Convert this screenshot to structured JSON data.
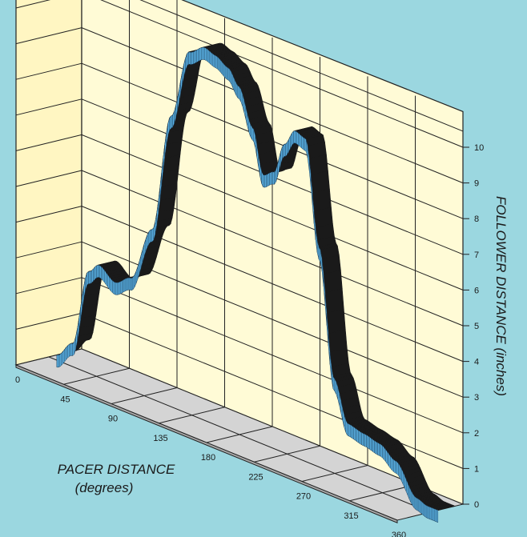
{
  "chart_data": {
    "type": "area",
    "render": "3d-ribbon",
    "xlabel": "PACER DISTANCE",
    "xlabel_unit": "(degrees)",
    "ylabel": "FOLLOWER DISTANCE  (inches)",
    "xlim": [
      0,
      360
    ],
    "ylim": [
      0,
      10
    ],
    "x_ticks": [
      "0",
      "45",
      "90",
      "135",
      "180",
      "225",
      "270",
      "315",
      "360"
    ],
    "y_ticks": [
      "0",
      "1",
      "2",
      "3",
      "4",
      "5",
      "6",
      "7",
      "8",
      "9",
      "10"
    ],
    "grid": true,
    "colors": {
      "background": "#9bd7e0",
      "back_wall": "#fffbd6",
      "side_wall": "#fff6c2",
      "floor": "#d4d4d4",
      "ribbon_front": "#5bb3e6",
      "ribbon_top": "#1a1a1a",
      "grid": "#222222"
    },
    "series": [
      {
        "x": [
          0,
          15,
          30,
          40,
          55,
          70,
          90,
          108,
          125,
          140,
          150,
          162,
          172,
          185,
          195,
          205,
          215,
          225,
          235,
          248,
          262,
          275,
          290,
          305,
          320,
          340,
          350,
          360
        ],
        "y": [
          0.0,
          0.5,
          2.7,
          3.0,
          2.7,
          3.0,
          4.6,
          8.0,
          10.0,
          10.3,
          10.2,
          10.0,
          9.6,
          8.6,
          7.4,
          7.6,
          8.5,
          9.0,
          8.9,
          6.0,
          2.5,
          1.4,
          1.3,
          1.2,
          0.9,
          0.1,
          0.0,
          0.0
        ]
      }
    ]
  }
}
